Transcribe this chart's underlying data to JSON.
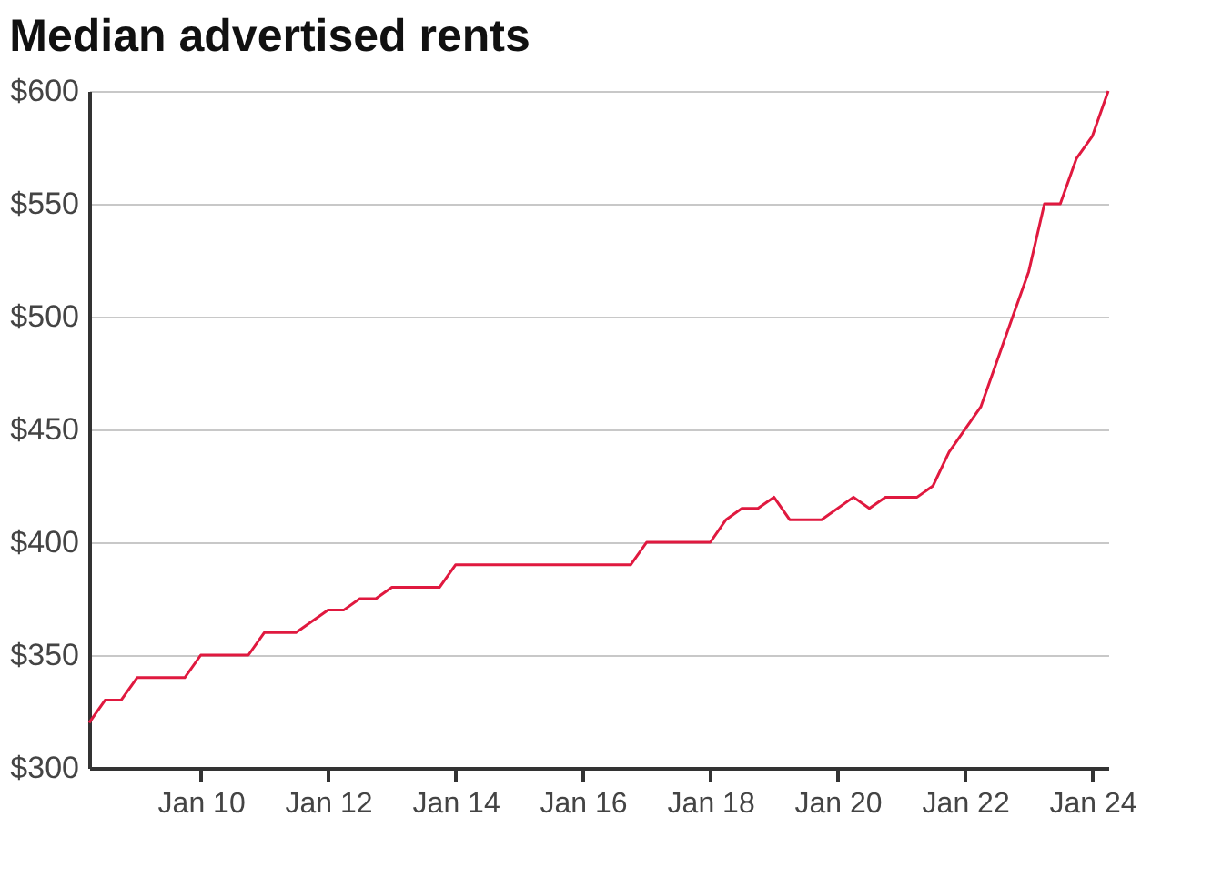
{
  "chart_data": {
    "type": "line",
    "title": "Median advertised rents",
    "x": [
      "2008-04",
      "2008-07",
      "2008-10",
      "2009-01",
      "2009-10",
      "2010-01",
      "2010-10",
      "2011-01",
      "2011-07",
      "2012-01",
      "2012-04",
      "2012-07",
      "2012-10",
      "2013-01",
      "2013-10",
      "2014-01",
      "2016-10",
      "2017-01",
      "2018-01",
      "2018-04",
      "2018-07",
      "2018-10",
      "2019-01",
      "2019-04",
      "2019-10",
      "2020-04",
      "2020-07",
      "2020-10",
      "2021-04",
      "2021-07",
      "2021-10",
      "2022-04",
      "2022-10",
      "2023-01",
      "2023-04",
      "2023-07",
      "2023-10",
      "2024-01",
      "2024-04"
    ],
    "series": [
      {
        "color": "#e0193f",
        "values": [
          320,
          330,
          330,
          340,
          340,
          350,
          350,
          360,
          360,
          370,
          370,
          375,
          375,
          380,
          380,
          390,
          390,
          400,
          400,
          410,
          415,
          415,
          420,
          410,
          410,
          420,
          415,
          420,
          420,
          425,
          440,
          460,
          500,
          520,
          550,
          550,
          570,
          580,
          600
        ]
      }
    ],
    "xlim": [
      "2008-04",
      "2024-04"
    ],
    "xticks": [
      {
        "value": "2010-01",
        "label": "Jan 10"
      },
      {
        "value": "2012-01",
        "label": "Jan 12"
      },
      {
        "value": "2014-01",
        "label": "Jan 14"
      },
      {
        "value": "2016-01",
        "label": "Jan 16"
      },
      {
        "value": "2018-01",
        "label": "Jan 18"
      },
      {
        "value": "2020-01",
        "label": "Jan 20"
      },
      {
        "value": "2022-01",
        "label": "Jan 22"
      },
      {
        "value": "2024-01",
        "label": "Jan 24"
      }
    ],
    "ylim": [
      300,
      600
    ],
    "yticks": [
      {
        "value": 300,
        "label": "$300"
      },
      {
        "value": 350,
        "label": "$350"
      },
      {
        "value": 400,
        "label": "$400"
      },
      {
        "value": 450,
        "label": "$450"
      },
      {
        "value": 500,
        "label": "$500"
      },
      {
        "value": 550,
        "label": "$550"
      },
      {
        "value": 600,
        "label": "$600"
      }
    ],
    "grid": "y",
    "marker": "none",
    "line_style": "solid"
  }
}
